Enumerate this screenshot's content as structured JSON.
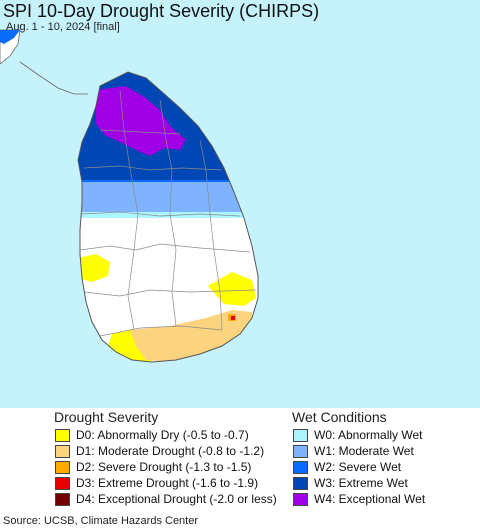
{
  "title": "SPI 10-Day Drought Severity (CHIRPS)",
  "subtitle": "Aug. 1 - 10, 2024 [final]",
  "legend": {
    "drought": {
      "heading": "Drought Severity",
      "items": [
        {
          "code": "D0",
          "label": "D0: Abnormally Dry (-0.5 to -0.7)",
          "color": "#ffff00"
        },
        {
          "code": "D1",
          "label": "D1: Moderate Drought (-0.8 to -1.2)",
          "color": "#fcd37f"
        },
        {
          "code": "D2",
          "label": "D2: Severe Drought (-1.3 to -1.5)",
          "color": "#ffaa00"
        },
        {
          "code": "D3",
          "label": "D3: Extreme Drought (-1.6 to -1.9)",
          "color": "#e60000"
        },
        {
          "code": "D4",
          "label": "D4: Exceptional Drought (-2.0 or less)",
          "color": "#730000"
        }
      ]
    },
    "wet": {
      "heading": "Wet Conditions",
      "items": [
        {
          "code": "W0",
          "label": "W0: Abnormally Wet",
          "color": "#aaf5ff"
        },
        {
          "code": "W1",
          "label": "W1: Moderate Wet",
          "color": "#7fb2ff"
        },
        {
          "code": "W2",
          "label": "W2: Severe Wet",
          "color": "#0a6cff"
        },
        {
          "code": "W3",
          "label": "W3: Extreme Wet",
          "color": "#0046b4"
        },
        {
          "code": "W4",
          "label": "W4: Exceptional Wet",
          "color": "#a000e6"
        }
      ]
    }
  },
  "source": "Source: UCSB, Climate Hazards Center",
  "colors": {
    "water": "#c6f3fb",
    "land": "#ffffff",
    "boundary": "#8c8c8c"
  }
}
